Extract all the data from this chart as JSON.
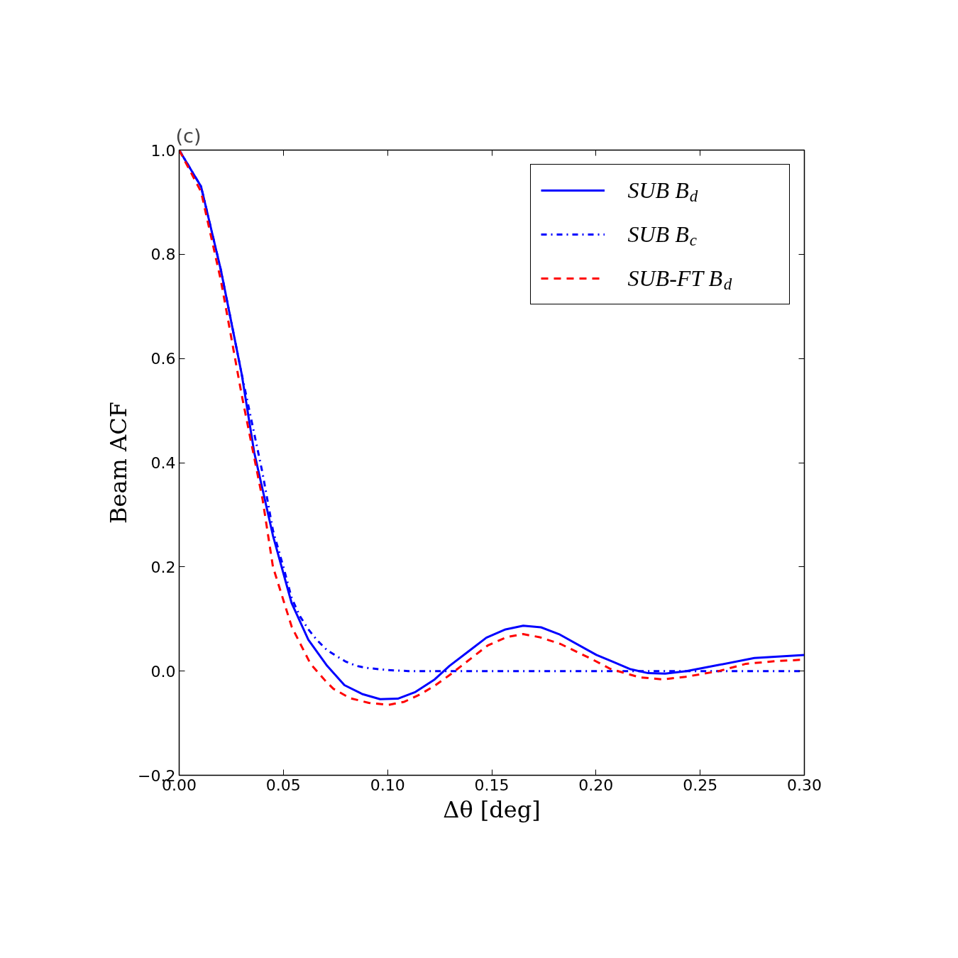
{
  "chart_data": {
    "type": "line",
    "title": "(c)",
    "xlabel": "Δθ [deg]",
    "ylabel": "Beam ACF",
    "xlim": [
      0,
      0.3
    ],
    "ylim": [
      -0.2,
      1.0
    ],
    "xticks": [
      {
        "value": 0,
        "label": "0.00"
      },
      {
        "value": 0.05,
        "label": "0.05"
      },
      {
        "value": 0.1,
        "label": "0.10"
      },
      {
        "value": 0.15,
        "label": "0.15"
      },
      {
        "value": 0.2,
        "label": "0.20"
      },
      {
        "value": 0.25,
        "label": "0.25"
      },
      {
        "value": 0.3,
        "label": "0.30"
      }
    ],
    "yticks": [
      {
        "value": -0.2,
        "label": "−0.2"
      },
      {
        "value": 0,
        "label": "0.0"
      },
      0.2,
      0.4,
      0.6,
      0.8,
      {
        "value": 1.0,
        "label": "1.0"
      }
    ],
    "grid": false,
    "legend": "top right",
    "series": [
      {
        "name": "SUB B$_{d}$",
        "color": "#0000ff",
        "line_style": "solid",
        "x": [
          0,
          0.0105,
          0.02,
          0.03,
          0.036,
          0.045,
          0.054,
          0.062,
          0.071,
          0.0793,
          0.0878,
          0.0964,
          0.1049,
          0.1134,
          0.1226,
          0.1297,
          0.1389,
          0.1474,
          0.1566,
          0.1651,
          0.1736,
          0.1822,
          0.2002,
          0.208,
          0.2162,
          0.2251,
          0.2332,
          0.2434,
          0.258,
          0.276,
          0.3
        ],
        "values": [
          1.0,
          0.93,
          0.77,
          0.57,
          0.42,
          0.26,
          0.13,
          0.06,
          0.01,
          -0.027,
          -0.044,
          -0.054,
          -0.053,
          -0.04,
          -0.016,
          0.01,
          0.038,
          0.064,
          0.08,
          0.087,
          0.084,
          0.071,
          0.031,
          0.018,
          0.004,
          -0.004,
          -0.005,
          0.0,
          0.011,
          0.025,
          0.031
        ]
      },
      {
        "name": "SUB B$_{c}$",
        "color": "#0000ff",
        "line_style": "dashdot",
        "x": [
          0,
          0.0105,
          0.02,
          0.03,
          0.04,
          0.045,
          0.05,
          0.054,
          0.058,
          0.062,
          0.066,
          0.071,
          0.075,
          0.08,
          0.085,
          0.09,
          0.1,
          0.11,
          0.15,
          0.2,
          0.25,
          0.3
        ],
        "values": [
          1.0,
          0.93,
          0.77,
          0.57,
          0.38,
          0.27,
          0.2,
          0.14,
          0.105,
          0.08,
          0.06,
          0.04,
          0.03,
          0.018,
          0.01,
          0.006,
          0.002,
          0.0,
          0.0,
          0.0,
          0.0,
          0.0
        ]
      },
      {
        "name": "SUB-FT B$_{d}$",
        "color": "#ff0000",
        "line_style": "dashed",
        "x": [
          0,
          0.0105,
          0.02,
          0.03,
          0.04,
          0.045,
          0.054,
          0.063,
          0.07,
          0.074,
          0.082,
          0.091,
          0.1004,
          0.108,
          0.116,
          0.123,
          0.13,
          0.138,
          0.148,
          0.157,
          0.165,
          0.173,
          0.183,
          0.198,
          0.207,
          0.221,
          0.232,
          0.243,
          0.259,
          0.272,
          0.286,
          0.3
        ],
        "values": [
          1.0,
          0.92,
          0.75,
          0.53,
          0.33,
          0.2,
          0.085,
          0.014,
          -0.018,
          -0.034,
          -0.052,
          -0.061,
          -0.065,
          -0.059,
          -0.044,
          -0.027,
          -0.007,
          0.018,
          0.049,
          0.065,
          0.071,
          0.065,
          0.052,
          0.023,
          0.004,
          -0.012,
          -0.016,
          -0.011,
          0.0,
          0.014,
          0.019,
          0.022
        ]
      }
    ]
  }
}
